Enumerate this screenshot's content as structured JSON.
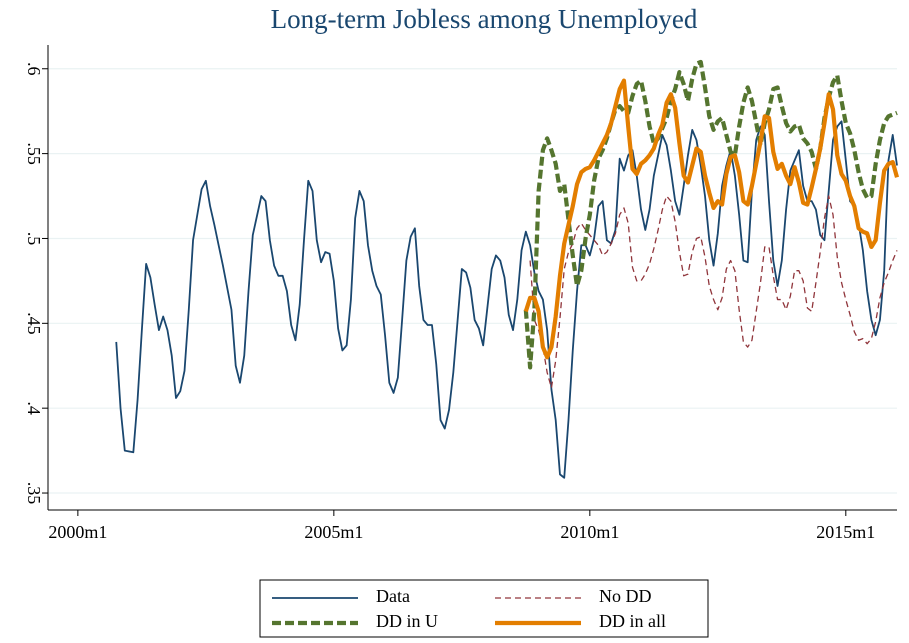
{
  "chart_data": {
    "type": "line",
    "title": "Long-term Jobless among Unemployed",
    "xlim": [
      473,
      672
    ],
    "ylim": [
      0.34,
      0.614
    ],
    "xticks": [
      {
        "value": 480,
        "label": "2000m1"
      },
      {
        "value": 540,
        "label": "2005m1"
      },
      {
        "value": 600,
        "label": "2010m1"
      },
      {
        "value": 660,
        "label": "2015m1"
      }
    ],
    "yticks": [
      {
        "value": 0.35,
        "label": ".35"
      },
      {
        "value": 0.4,
        "label": ".4"
      },
      {
        "value": 0.45,
        "label": ".45"
      },
      {
        "value": 0.5,
        "label": ".5"
      },
      {
        "value": 0.55,
        "label": ".55"
      },
      {
        "value": 0.6,
        "label": ".6"
      }
    ],
    "grid": true,
    "series": [
      {
        "name": "Data",
        "color": "#1a476f",
        "style": "solid",
        "x": [
          489,
          490,
          491,
          493,
          494,
          495,
          496,
          497,
          498,
          499,
          500,
          501,
          502,
          503,
          504,
          505,
          506,
          507,
          509,
          510,
          511,
          512,
          513,
          514,
          516,
          517,
          518,
          519,
          520,
          521,
          523,
          524,
          525,
          526,
          527,
          528,
          529,
          530,
          531,
          532,
          533,
          534,
          535,
          536,
          537,
          538,
          539,
          540,
          541,
          542,
          543,
          544,
          545,
          546,
          547,
          548,
          549,
          550,
          551,
          552,
          553,
          554,
          555,
          556,
          557,
          558,
          559,
          560,
          561,
          562,
          563,
          564,
          565,
          566,
          567,
          568,
          570,
          571,
          572,
          573,
          574,
          575,
          577,
          578,
          579,
          580,
          581,
          582,
          583,
          584,
          585,
          586,
          587,
          588,
          589,
          590,
          591,
          592,
          593,
          594,
          595,
          596,
          597,
          598,
          599,
          600,
          601,
          602,
          603,
          604,
          605,
          606,
          607,
          608,
          609,
          610,
          611,
          612,
          613,
          614,
          615,
          616,
          617,
          618,
          619,
          620,
          621,
          622,
          623,
          624,
          625,
          626,
          627,
          628,
          629,
          630,
          631,
          632,
          633,
          634,
          635,
          636,
          637,
          638,
          639,
          640,
          641,
          642,
          643,
          644,
          645,
          646,
          647,
          648,
          649,
          650,
          651,
          652,
          653,
          654,
          655,
          656,
          657,
          658,
          659,
          660,
          661,
          662,
          663,
          664,
          665,
          666,
          667,
          668,
          669,
          670,
          671,
          672
        ],
        "values": [
          0.439,
          0.4,
          0.375,
          0.374,
          0.405,
          0.446,
          0.485,
          0.477,
          0.461,
          0.446,
          0.454,
          0.446,
          0.431,
          0.406,
          0.41,
          0.422,
          0.458,
          0.499,
          0.529,
          0.534,
          0.519,
          0.508,
          0.496,
          0.484,
          0.458,
          0.425,
          0.415,
          0.431,
          0.469,
          0.502,
          0.525,
          0.522,
          0.499,
          0.484,
          0.478,
          0.478,
          0.469,
          0.449,
          0.44,
          0.461,
          0.499,
          0.534,
          0.528,
          0.499,
          0.486,
          0.492,
          0.491,
          0.475,
          0.447,
          0.434,
          0.437,
          0.464,
          0.512,
          0.528,
          0.522,
          0.496,
          0.481,
          0.472,
          0.467,
          0.443,
          0.415,
          0.409,
          0.418,
          0.452,
          0.487,
          0.501,
          0.506,
          0.472,
          0.452,
          0.449,
          0.449,
          0.426,
          0.393,
          0.388,
          0.399,
          0.421,
          0.482,
          0.48,
          0.471,
          0.452,
          0.447,
          0.437,
          0.482,
          0.49,
          0.487,
          0.477,
          0.455,
          0.446,
          0.464,
          0.493,
          0.504,
          0.496,
          0.48,
          0.469,
          0.464,
          0.446,
          0.411,
          0.393,
          0.361,
          0.359,
          0.393,
          0.434,
          0.469,
          0.496,
          0.496,
          0.49,
          0.5,
          0.519,
          0.522,
          0.499,
          0.497,
          0.505,
          0.547,
          0.54,
          0.549,
          0.552,
          0.537,
          0.517,
          0.505,
          0.517,
          0.537,
          0.549,
          0.561,
          0.555,
          0.54,
          0.522,
          0.514,
          0.531,
          0.549,
          0.564,
          0.558,
          0.543,
          0.525,
          0.499,
          0.484,
          0.503,
          0.531,
          0.543,
          0.552,
          0.537,
          0.514,
          0.487,
          0.486,
          0.528,
          0.558,
          0.566,
          0.561,
          0.522,
          0.487,
          0.472,
          0.487,
          0.517,
          0.54,
          0.546,
          0.552,
          0.531,
          0.522,
          0.522,
          0.517,
          0.502,
          0.499,
          0.528,
          0.558,
          0.566,
          0.569,
          0.546,
          0.522,
          0.519,
          0.509,
          0.493,
          0.469,
          0.452,
          0.443,
          0.452,
          0.481,
          0.546,
          0.561,
          0.543
        ]
      },
      {
        "name": "No DD",
        "color": "#90353b",
        "style": "dash",
        "x": [
          586,
          587,
          588,
          589,
          590,
          591,
          592,
          593,
          594,
          595,
          596,
          597,
          598,
          599,
          600,
          601,
          602,
          603,
          604,
          605,
          606,
          607,
          608,
          609,
          610,
          611,
          612,
          613,
          614,
          615,
          616,
          617,
          618,
          619,
          620,
          621,
          622,
          623,
          624,
          625,
          626,
          627,
          628,
          629,
          630,
          631,
          632,
          633,
          634,
          635,
          636,
          637,
          638,
          639,
          640,
          641,
          642,
          643,
          644,
          645,
          646,
          647,
          648,
          649,
          650,
          651,
          652,
          653,
          654,
          655,
          656,
          657,
          658,
          659,
          660,
          661,
          662,
          663,
          664,
          665,
          666,
          667,
          668,
          669,
          670,
          671,
          672
        ],
        "values": [
          0.487,
          0.452,
          0.446,
          0.436,
          0.421,
          0.412,
          0.428,
          0.453,
          0.482,
          0.492,
          0.497,
          0.506,
          0.509,
          0.505,
          0.502,
          0.499,
          0.496,
          0.49,
          0.492,
          0.497,
          0.503,
          0.514,
          0.518,
          0.509,
          0.483,
          0.475,
          0.475,
          0.479,
          0.485,
          0.494,
          0.505,
          0.517,
          0.525,
          0.522,
          0.51,
          0.492,
          0.478,
          0.479,
          0.492,
          0.5,
          0.501,
          0.489,
          0.472,
          0.464,
          0.458,
          0.465,
          0.482,
          0.487,
          0.481,
          0.458,
          0.439,
          0.436,
          0.44,
          0.457,
          0.474,
          0.495,
          0.495,
          0.478,
          0.464,
          0.464,
          0.458,
          0.466,
          0.481,
          0.481,
          0.475,
          0.459,
          0.457,
          0.474,
          0.492,
          0.512,
          0.525,
          0.514,
          0.489,
          0.474,
          0.464,
          0.455,
          0.445,
          0.44,
          0.441,
          0.438,
          0.441,
          0.451,
          0.465,
          0.474,
          0.48,
          0.487,
          0.493
        ]
      },
      {
        "name": "DD in U",
        "color": "#55752f",
        "style": "thickdash",
        "x": [
          585,
          586,
          587,
          588,
          589,
          590,
          591,
          592,
          593,
          594,
          595,
          596,
          597,
          598,
          599,
          600,
          601,
          602,
          603,
          604,
          605,
          606,
          607,
          608,
          609,
          610,
          611,
          612,
          613,
          614,
          615,
          616,
          617,
          618,
          619,
          620,
          621,
          622,
          623,
          624,
          625,
          626,
          627,
          628,
          629,
          630,
          631,
          632,
          633,
          634,
          635,
          636,
          637,
          638,
          639,
          640,
          641,
          642,
          643,
          644,
          645,
          646,
          647,
          648,
          649,
          650,
          651,
          652,
          653,
          654,
          655,
          656,
          657,
          658,
          659,
          660,
          661,
          662,
          663,
          664,
          665,
          666,
          667,
          668,
          669,
          670,
          671,
          672
        ],
        "values": [
          0.458,
          0.424,
          0.458,
          0.528,
          0.552,
          0.559,
          0.552,
          0.544,
          0.528,
          0.532,
          0.511,
          0.49,
          0.472,
          0.481,
          0.5,
          0.514,
          0.534,
          0.547,
          0.552,
          0.559,
          0.568,
          0.576,
          0.578,
          0.575,
          0.574,
          0.584,
          0.591,
          0.593,
          0.581,
          0.566,
          0.556,
          0.559,
          0.565,
          0.571,
          0.581,
          0.588,
          0.598,
          0.591,
          0.581,
          0.594,
          0.603,
          0.604,
          0.589,
          0.572,
          0.564,
          0.569,
          0.571,
          0.561,
          0.551,
          0.549,
          0.566,
          0.58,
          0.589,
          0.581,
          0.568,
          0.555,
          0.568,
          0.576,
          0.588,
          0.589,
          0.578,
          0.568,
          0.563,
          0.566,
          0.567,
          0.559,
          0.556,
          0.551,
          0.541,
          0.553,
          0.571,
          0.583,
          0.592,
          0.596,
          0.581,
          0.568,
          0.562,
          0.552,
          0.539,
          0.529,
          0.524,
          0.525,
          0.544,
          0.558,
          0.568,
          0.572,
          0.573,
          0.574
        ]
      },
      {
        "name": "DD in all",
        "color": "#e37e00",
        "style": "thick",
        "x": [
          585,
          586,
          587,
          588,
          589,
          590,
          591,
          592,
          593,
          594,
          595,
          596,
          597,
          598,
          599,
          600,
          601,
          602,
          603,
          604,
          605,
          606,
          607,
          608,
          609,
          610,
          611,
          612,
          613,
          614,
          615,
          616,
          617,
          618,
          619,
          620,
          621,
          622,
          623,
          624,
          625,
          626,
          627,
          628,
          629,
          630,
          631,
          632,
          633,
          634,
          635,
          636,
          637,
          638,
          639,
          640,
          641,
          642,
          643,
          644,
          645,
          646,
          647,
          648,
          649,
          650,
          651,
          652,
          653,
          654,
          655,
          656,
          657,
          658,
          659,
          660,
          661,
          662,
          663,
          664,
          665,
          666,
          667,
          668,
          669,
          670,
          671,
          672
        ],
        "values": [
          0.457,
          0.465,
          0.465,
          0.457,
          0.436,
          0.43,
          0.436,
          0.454,
          0.478,
          0.497,
          0.508,
          0.519,
          0.532,
          0.539,
          0.541,
          0.542,
          0.546,
          0.551,
          0.556,
          0.561,
          0.568,
          0.578,
          0.588,
          0.593,
          0.566,
          0.541,
          0.538,
          0.544,
          0.546,
          0.549,
          0.553,
          0.561,
          0.567,
          0.58,
          0.585,
          0.577,
          0.556,
          0.537,
          0.533,
          0.543,
          0.553,
          0.551,
          0.537,
          0.527,
          0.518,
          0.522,
          0.52,
          0.538,
          0.548,
          0.549,
          0.539,
          0.522,
          0.52,
          0.531,
          0.544,
          0.557,
          0.572,
          0.571,
          0.551,
          0.541,
          0.544,
          0.537,
          0.532,
          0.542,
          0.533,
          0.521,
          0.52,
          0.53,
          0.541,
          0.553,
          0.568,
          0.585,
          0.576,
          0.549,
          0.538,
          0.534,
          0.525,
          0.519,
          0.506,
          0.504,
          0.503,
          0.495,
          0.499,
          0.521,
          0.54,
          0.544,
          0.545,
          0.536
        ]
      }
    ]
  }
}
